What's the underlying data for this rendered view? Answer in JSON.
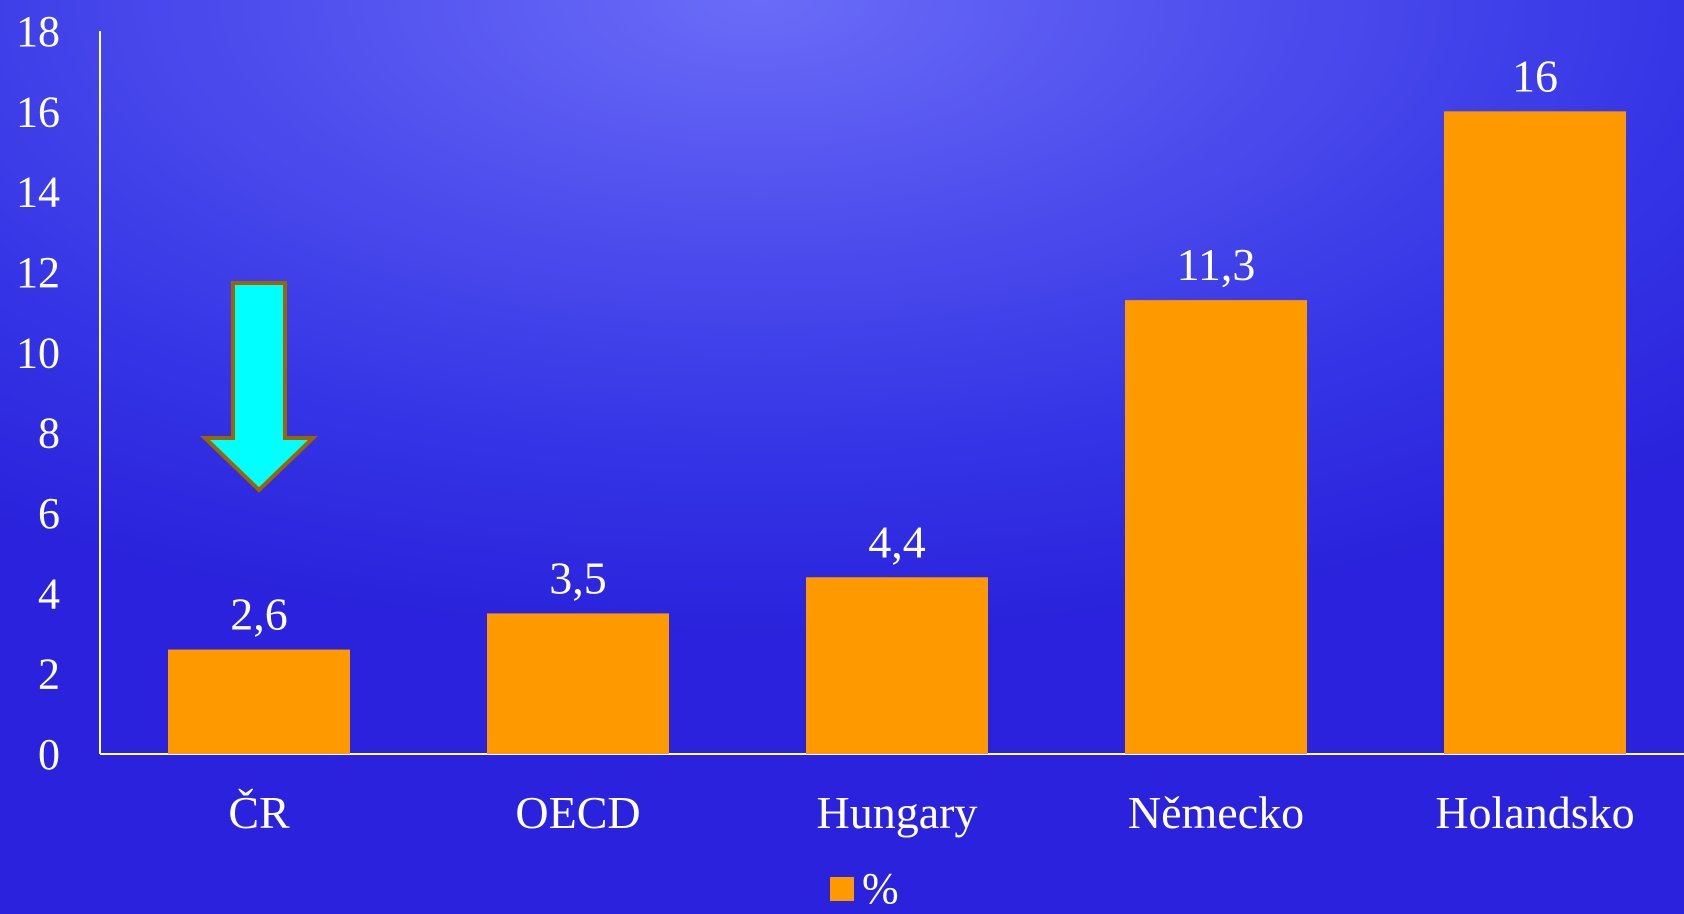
{
  "chart_data": {
    "type": "bar",
    "categories": [
      "ČR",
      "OECD",
      "Hungary",
      "Německo",
      "Holandsko"
    ],
    "series": [
      {
        "name": "%",
        "values": [
          2.6,
          3.5,
          4.4,
          11.3,
          16
        ]
      }
    ],
    "data_labels": [
      "2,6",
      "3,5",
      "4,4",
      "11,3",
      "16"
    ],
    "yticks": [
      0,
      2,
      4,
      6,
      8,
      10,
      12,
      14,
      16,
      18
    ],
    "ylim": [
      0,
      18
    ],
    "bar_color": "#ff9900",
    "axis_color": "#ffffff",
    "text_color": "#ffffff",
    "legend": {
      "position": "bottom",
      "label": "%"
    },
    "annotation": {
      "type": "down-arrow",
      "category": "ČR",
      "fill": "#00ffff",
      "stroke": "#996600"
    }
  }
}
